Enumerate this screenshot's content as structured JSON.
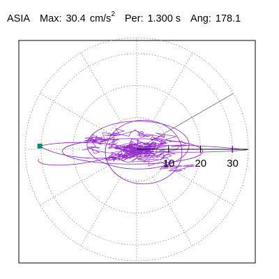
{
  "header": {
    "station": "ASIA",
    "max_label": "Max:",
    "max_value": "30.4",
    "max_unit": "cm/s",
    "max_exp": "2",
    "per_label": "Per:",
    "per_value": "1.300 s",
    "ang_label": "Ang:",
    "ang_value": "178.1"
  },
  "chart_data": {
    "type": "scatter",
    "polar": true,
    "title": "",
    "rmax": 35,
    "rings": [
      10,
      20,
      30
    ],
    "outer_ring": 35,
    "spoke_step_deg": 30,
    "tick_labels": [
      "10",
      "20",
      "30"
    ],
    "max_vector": {
      "r": 30.4,
      "angle_deg": 178.1
    },
    "reference_line": {
      "r": 35,
      "angle_deg": 30
    },
    "trace_color": "#8a1cc8",
    "marker_color": "#008f6b",
    "grid": true,
    "trajectory_note": "particle motion path centered at origin"
  }
}
